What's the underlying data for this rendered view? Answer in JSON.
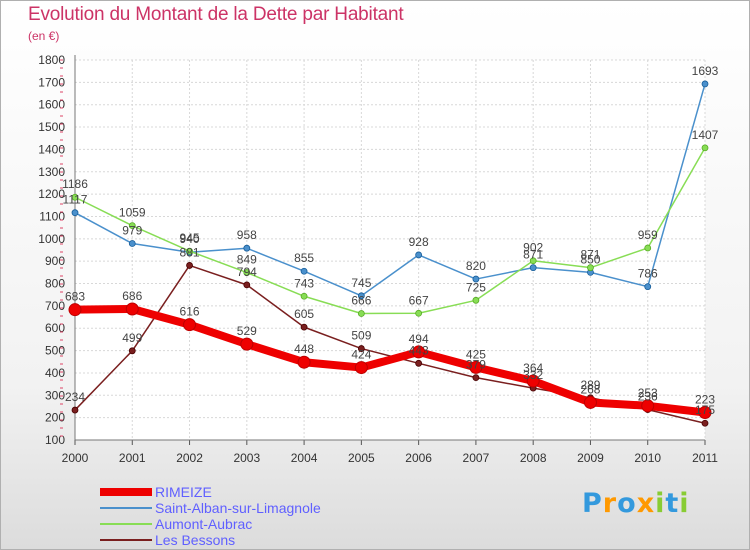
{
  "chart_data": {
    "type": "line",
    "title": "Evolution du Montant de la Dette par Habitant",
    "subtitle": "(en €)",
    "x": [
      "2000",
      "2001",
      "2002",
      "2003",
      "2004",
      "2005",
      "2006",
      "2007",
      "2008",
      "2009",
      "2010",
      "2011"
    ],
    "yticks": [
      "100",
      "200",
      "300",
      "400",
      "500",
      "600",
      "700",
      "800",
      "900",
      "1000",
      "1100",
      "1200",
      "1300",
      "1400",
      "1500",
      "1600",
      "1700",
      "1800"
    ],
    "ylim": [
      100,
      1800
    ],
    "grid": true,
    "legend_position": "bottom-left",
    "series": [
      {
        "name": "Saint-Alban-sur-Limagnole",
        "color": "#4a90cc",
        "values": [
          1117,
          979,
          940,
          958,
          855,
          745,
          928,
          820,
          871,
          850,
          786,
          1693
        ]
      },
      {
        "name": "Aumont-Aubrac",
        "color": "#88dd55",
        "values": [
          1186,
          1059,
          945,
          849,
          743,
          666,
          667,
          725,
          902,
          871,
          959,
          1407
        ]
      },
      {
        "name": "Les Bessons",
        "color": "#7a1f1f",
        "values": [
          234,
          499,
          881,
          794,
          605,
          509,
          443,
          379,
          332,
          289,
          236,
          175
        ]
      },
      {
        "name": "RIMEIZE",
        "color": "#ee0000",
        "values": [
          683,
          686,
          616,
          529,
          448,
          424,
          494,
          425,
          364,
          268,
          253,
          223
        ]
      }
    ],
    "data_labels": [
      {
        "series": 0,
        "values": [
          "1117",
          "979",
          "940",
          "958",
          "855",
          "745",
          "928",
          "820",
          "871",
          "850",
          "786",
          "1693"
        ]
      },
      {
        "series": 1,
        "values": [
          "1186",
          "1059",
          "945",
          "849",
          "743",
          "666",
          "667",
          "725",
          "902",
          "871",
          "959",
          "1407"
        ]
      },
      {
        "series": 2,
        "values": [
          "234",
          "499",
          "881",
          "794",
          "605",
          "509",
          "443",
          "379",
          "332",
          "289",
          "236",
          "175"
        ]
      },
      {
        "series": 3,
        "values": [
          "683",
          "686",
          "616",
          "529",
          "448",
          "424",
          "494",
          "425",
          "364",
          "268",
          "253",
          "223"
        ]
      }
    ],
    "legend": [
      "RIMEIZE",
      "Saint-Alban-sur-Limagnole",
      "Aumont-Aubrac",
      "Les Bessons"
    ]
  },
  "branding": {
    "logo_text": "Proxiti",
    "logo_letters": [
      "P",
      "r",
      "o",
      "x",
      "i",
      "t",
      "i"
    ],
    "logo_colors": [
      "#3399dd",
      "#ff9900",
      "#3399dd",
      "#ff9900",
      "#88cc33",
      "#3399dd",
      "#88cc33"
    ]
  }
}
